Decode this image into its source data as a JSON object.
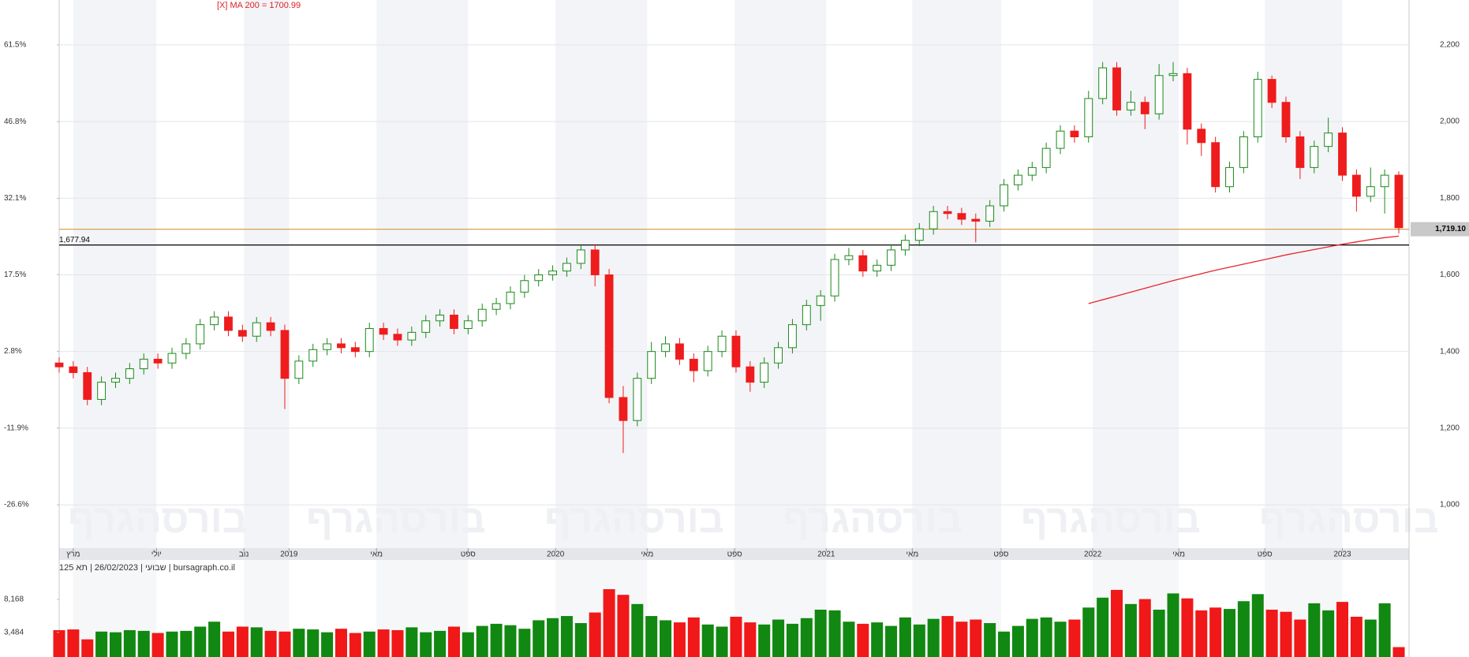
{
  "chart_data": {
    "type": "candlestick",
    "ma_label": "[X] MA 200 = 1700.99",
    "info": "שבועי | 26/02/2023 | תא 125 | bursagraph.co.il",
    "watermark": "בורסהגרף",
    "up_color": "#1a8a1a",
    "down_color": "#ee1c1c",
    "grid": true,
    "xticks": [
      {
        "value": 1.0,
        "label": "מרץ"
      },
      {
        "value": 6.9,
        "label": "יולי"
      },
      {
        "value": 13.1,
        "label": "נוב"
      },
      {
        "value": 16.3,
        "label": "2019"
      },
      {
        "value": 22.5,
        "label": "מאי"
      },
      {
        "value": 29.0,
        "label": "ספט"
      },
      {
        "value": 35.2,
        "label": "2020"
      },
      {
        "value": 41.7,
        "label": "מאי"
      },
      {
        "value": 47.9,
        "label": "ספט"
      },
      {
        "value": 54.4,
        "label": "2021"
      },
      {
        "value": 60.5,
        "label": "מאי"
      },
      {
        "value": 66.8,
        "label": "ספט"
      },
      {
        "value": 73.3,
        "label": "2022"
      },
      {
        "value": 79.4,
        "label": "מאי"
      },
      {
        "value": 85.5,
        "label": "ספט"
      },
      {
        "value": 91.0,
        "label": "2023"
      }
    ],
    "ylim": [
      887,
      2317
    ],
    "yticks": [
      {
        "value": 1000,
        "label": "1,000"
      },
      {
        "value": 1200,
        "label": "1,200"
      },
      {
        "value": 1400,
        "label": "1,400"
      },
      {
        "value": 1600,
        "label": "1,600"
      },
      {
        "value": 1800,
        "label": "1,800"
      },
      {
        "value": 2000,
        "label": "2,000"
      },
      {
        "value": 2200,
        "label": "2,200"
      }
    ],
    "y2lim": [
      -34.9,
      70.1
    ],
    "y2ticks": [
      {
        "value": 61.5,
        "label": "61.5%"
      },
      {
        "value": 46.8,
        "label": "46.8%"
      },
      {
        "value": 32.1,
        "label": "32.1%"
      },
      {
        "value": 17.5,
        "label": "17.5%"
      },
      {
        "value": 2.8,
        "label": "2.8%"
      },
      {
        "value": -11.9,
        "label": "-11.9%"
      },
      {
        "value": -26.6,
        "label": "-26.6%"
      }
    ],
    "levels": [
      {
        "value": 1677.94,
        "label": "1,677.94",
        "color": "#000000"
      },
      {
        "value": 1719.1,
        "label": "1,719.10",
        "color": "#d9a050"
      }
    ],
    "open": [
      1370,
      1360,
      1345,
      1275,
      1320,
      1330,
      1355,
      1380,
      1370,
      1395,
      1420,
      1470,
      1490,
      1455,
      1440,
      1475,
      1455,
      1330,
      1375,
      1405,
      1420,
      1410,
      1400,
      1460,
      1445,
      1430,
      1450,
      1480,
      1495,
      1460,
      1480,
      1510,
      1525,
      1555,
      1585,
      1600,
      1610,
      1630,
      1665,
      1600,
      1280,
      1220,
      1330,
      1400,
      1420,
      1380,
      1350,
      1400,
      1440,
      1360,
      1320,
      1370,
      1410,
      1470,
      1520,
      1545,
      1640,
      1650,
      1610,
      1625,
      1665,
      1690,
      1720,
      1765,
      1760,
      1745,
      1740,
      1780,
      1835,
      1860,
      1880,
      1930,
      1975,
      1960,
      2060,
      2140,
      2030,
      2050,
      2020,
      2120,
      2125,
      1980,
      1945,
      1830,
      1880,
      1960,
      2110,
      2050,
      1960,
      1880,
      1935,
      1970,
      1860,
      1805,
      1830,
      1860
    ],
    "high": [
      1385,
      1375,
      1360,
      1335,
      1345,
      1370,
      1395,
      1395,
      1410,
      1435,
      1485,
      1505,
      1505,
      1470,
      1490,
      1490,
      1470,
      1390,
      1420,
      1435,
      1435,
      1425,
      1475,
      1475,
      1460,
      1465,
      1495,
      1510,
      1510,
      1495,
      1525,
      1540,
      1570,
      1600,
      1615,
      1625,
      1645,
      1680,
      1680,
      1615,
      1310,
      1345,
      1425,
      1440,
      1435,
      1395,
      1415,
      1455,
      1455,
      1375,
      1385,
      1425,
      1485,
      1535,
      1560,
      1655,
      1670,
      1665,
      1640,
      1680,
      1705,
      1735,
      1780,
      1780,
      1775,
      1760,
      1795,
      1850,
      1875,
      1895,
      1945,
      1990,
      1990,
      2080,
      2155,
      2155,
      2080,
      2065,
      2150,
      2155,
      2140,
      1995,
      1960,
      1895,
      1975,
      2130,
      2120,
      2065,
      1975,
      1950,
      2010,
      1985,
      1875,
      1880,
      1875,
      1870
    ],
    "low": [
      1345,
      1330,
      1260,
      1260,
      1305,
      1315,
      1340,
      1355,
      1355,
      1380,
      1405,
      1455,
      1440,
      1425,
      1425,
      1440,
      1250,
      1315,
      1360,
      1390,
      1395,
      1385,
      1385,
      1430,
      1415,
      1415,
      1435,
      1465,
      1445,
      1445,
      1465,
      1495,
      1510,
      1540,
      1570,
      1585,
      1595,
      1615,
      1570,
      1265,
      1135,
      1205,
      1315,
      1385,
      1365,
      1320,
      1335,
      1385,
      1345,
      1295,
      1305,
      1355,
      1395,
      1455,
      1480,
      1530,
      1625,
      1595,
      1595,
      1610,
      1650,
      1675,
      1705,
      1745,
      1730,
      1685,
      1725,
      1765,
      1820,
      1845,
      1865,
      1915,
      1945,
      1945,
      2045,
      2015,
      2015,
      1980,
      2005,
      2105,
      1940,
      1910,
      1815,
      1815,
      1865,
      1945,
      2035,
      1945,
      1850,
      1865,
      1920,
      1845,
      1765,
      1790,
      1760,
      1708
    ],
    "close": [
      1360,
      1345,
      1275,
      1320,
      1330,
      1355,
      1380,
      1370,
      1395,
      1420,
      1470,
      1490,
      1455,
      1440,
      1475,
      1455,
      1330,
      1375,
      1405,
      1420,
      1410,
      1400,
      1460,
      1445,
      1430,
      1450,
      1480,
      1495,
      1460,
      1480,
      1510,
      1525,
      1555,
      1585,
      1600,
      1610,
      1630,
      1665,
      1600,
      1280,
      1220,
      1330,
      1400,
      1420,
      1380,
      1350,
      1400,
      1440,
      1360,
      1320,
      1370,
      1410,
      1470,
      1520,
      1545,
      1640,
      1650,
      1610,
      1625,
      1665,
      1690,
      1720,
      1765,
      1760,
      1745,
      1740,
      1780,
      1835,
      1860,
      1880,
      1930,
      1975,
      1960,
      2060,
      2140,
      2030,
      2050,
      2020,
      2120,
      2125,
      1980,
      1945,
      1830,
      1880,
      1960,
      2110,
      2050,
      1960,
      1880,
      1935,
      1970,
      1860,
      1805,
      1830,
      1860,
      1723
    ],
    "ma": {
      "color": "#e8262c",
      "values": [
        null,
        null,
        null,
        null,
        null,
        null,
        null,
        null,
        null,
        null,
        null,
        null,
        null,
        null,
        null,
        null,
        null,
        null,
        null,
        null,
        null,
        null,
        null,
        null,
        null,
        null,
        null,
        null,
        null,
        null,
        null,
        null,
        null,
        null,
        null,
        null,
        null,
        null,
        null,
        null,
        null,
        null,
        null,
        null,
        null,
        null,
        null,
        null,
        null,
        null,
        null,
        null,
        null,
        null,
        null,
        null,
        null,
        null,
        null,
        null,
        null,
        null,
        null,
        null,
        null,
        null,
        null,
        null,
        null,
        null,
        null,
        null,
        null,
        1525,
        1535,
        1545,
        1555,
        1565,
        1575,
        1585,
        1594,
        1603,
        1612,
        1620,
        1628,
        1636,
        1644,
        1652,
        1659,
        1666,
        1673,
        1680,
        1686,
        1692,
        1697,
        1700.99
      ]
    },
    "volume": {
      "ylim": [
        0,
        11500
      ],
      "yticks": [
        {
          "value": 3484,
          "label": "3,484"
        },
        {
          "value": 8168,
          "label": "8,168"
        }
      ],
      "values": [
        3800,
        3900,
        2500,
        3600,
        3500,
        3800,
        3700,
        3400,
        3600,
        3700,
        4300,
        5000,
        3600,
        4300,
        4200,
        3700,
        3600,
        4000,
        3900,
        3500,
        4000,
        3400,
        3600,
        3900,
        3800,
        4200,
        3500,
        3700,
        4300,
        3500,
        4400,
        4700,
        4500,
        4000,
        5200,
        5500,
        5800,
        4800,
        6300,
        9600,
        8800,
        7500,
        5800,
        5200,
        4900,
        5600,
        4600,
        4300,
        5700,
        4900,
        4600,
        5300,
        4700,
        5500,
        6700,
        6600,
        5000,
        4700,
        4900,
        4400,
        5600,
        4600,
        5400,
        5800,
        5000,
        5300,
        4800,
        3600,
        4400,
        5400,
        5600,
        5000,
        5300,
        7000,
        8400,
        9500,
        7500,
        8200,
        6700,
        9000,
        8300,
        6600,
        7000,
        6800,
        7900,
        8900,
        6700,
        6400,
        5300,
        7600,
        6600,
        7800,
        5700,
        5300,
        7600,
        1400
      ]
    }
  }
}
